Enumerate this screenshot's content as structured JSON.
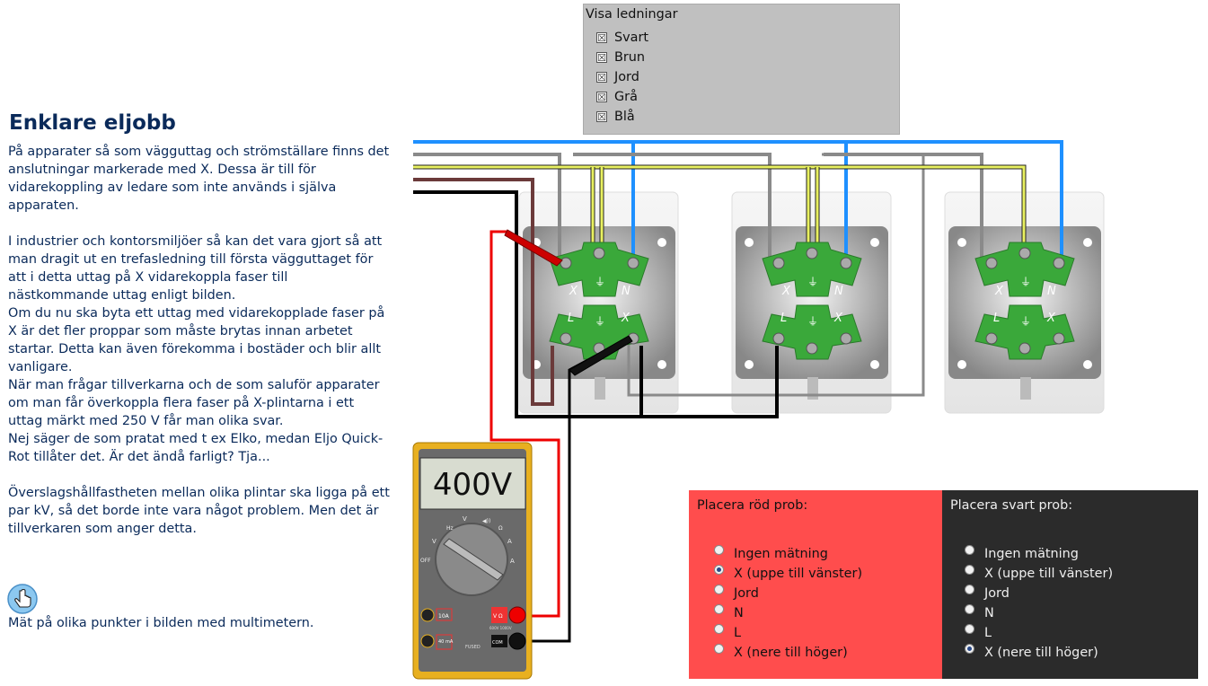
{
  "article": {
    "title": "Enklare eljobb",
    "paragraphs": [
      "På apparater så som vägguttag och strömställare finns det anslutningar markerade med X. Dessa är till för vidarekoppling av ledare som inte används i själva apparaten.",
      "",
      "I industrier och kontorsmiljöer så kan det vara gjort så att man dragit ut en trefasledning till första vägguttaget för att i detta uttag på X vidarekoppla faser till nästkommande uttag enligt bilden.",
      "Om du nu ska byta ett uttag med vidarekopplade faser på X är det fler proppar som måste brytas innan arbetet startar. Detta kan även förekomma i bostäder och blir allt vanligare.",
      "När man frågar tillverkarna och de som saluför apparater om man får överkoppla flera faser på X-plintarna i ett uttag märkt med 250 V får man olika svar.",
      "Nej säger de som pratat med t ex Elko, medan Eljo Quick-Rot tillåter det. Är det ändå farligt? Tja...",
      "",
      "Överslagshållfastheten mellan olika plintar ska ligga på ett par kV, så det borde inte vara något problem. Men det är tillverkaren som anger detta."
    ],
    "hint": "Mät på olika punkter i bilden med multimetern.",
    "hand_icon": "pointer-hand-icon"
  },
  "wire_panel": {
    "title": "Visa ledningar",
    "items": [
      {
        "label": "Svart",
        "checked": true
      },
      {
        "label": "Brun",
        "checked": true
      },
      {
        "label": "Jord",
        "checked": true
      },
      {
        "label": "Grå",
        "checked": true
      },
      {
        "label": "Blå",
        "checked": true
      }
    ],
    "check_mark": "☒"
  },
  "terminal_labels": {
    "x": "X",
    "n": "N",
    "l": "L"
  },
  "multimeter": {
    "display": "400V",
    "dial_labels": {
      "hz": "Hz",
      "v_dc": "V",
      "v_ac": "V",
      "a_ac": "A",
      "a_dc": "A",
      "ohm": "Ω",
      "off": "OFF",
      "sound": "◀))"
    },
    "jacks": {
      "amp10": "10A",
      "ma40": "40 mA",
      "v_ohm": "V Ω",
      "com": "COM",
      "rating": "600V 1000V",
      "fused": "FUSED"
    }
  },
  "probe_red": {
    "title": "Placera röd prob:",
    "options": [
      "Ingen mätning",
      "X (uppe till vänster)",
      "Jord",
      "N",
      "L",
      "X (nere till höger)"
    ],
    "selected": 1
  },
  "probe_black": {
    "title": "Placera svart prob:",
    "options": [
      "Ingen mätning",
      "X (uppe till vänster)",
      "Jord",
      "N",
      "L",
      "X (nere till höger)"
    ],
    "selected": 5
  },
  "colors": {
    "text": "#0a2a5a",
    "wire_blue": "#1e90ff",
    "wire_grey": "#8a8a8a",
    "wire_yellowgreen": "#e8f060",
    "wire_brown": "#6b3a3a",
    "wire_black": "#000000",
    "terminal_green": "#3aa83a",
    "probe_red_bg": "#ff4d4d",
    "probe_black_bg": "#2b2b2b",
    "multimeter_body": "#e8b020"
  }
}
